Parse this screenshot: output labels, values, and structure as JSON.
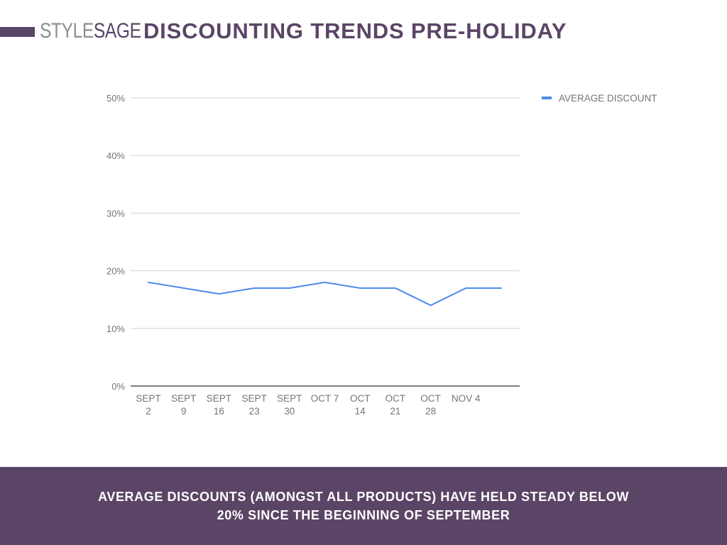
{
  "header": {
    "logo_style": "STYLE",
    "logo_sage": "SAGE",
    "title": "DISCOUNTING TRENDS PRE-HOLIDAY"
  },
  "chart_data": {
    "type": "line",
    "title": "",
    "xlabel": "",
    "ylabel": "",
    "categories": [
      [
        "SEPT",
        "2"
      ],
      [
        "SEPT",
        "9"
      ],
      [
        "SEPT",
        "16"
      ],
      [
        "SEPT",
        "23"
      ],
      [
        "SEPT",
        "30"
      ],
      [
        "OCT 7"
      ],
      [
        "OCT",
        "14"
      ],
      [
        "OCT",
        "21"
      ],
      [
        "OCT",
        "28"
      ],
      [
        "NOV 4"
      ],
      []
    ],
    "series": [
      {
        "name": "AVERAGE DISCOUNT",
        "color": "#4f8bea",
        "values": [
          18,
          17,
          16,
          17,
          17,
          18,
          17,
          17,
          14,
          17,
          17
        ]
      }
    ],
    "ylim": [
      0,
      50
    ],
    "yticks": [
      0,
      10,
      20,
      30,
      40,
      50
    ],
    "ytick_suffix": "%",
    "grid": true,
    "legend_position": "right"
  },
  "footer": {
    "line1": "AVERAGE DISCOUNTS (AMONGST ALL PRODUCTS) HAVE HELD STEADY BELOW",
    "line2": "20% SINCE THE BEGINNING OF SEPTEMBER"
  }
}
